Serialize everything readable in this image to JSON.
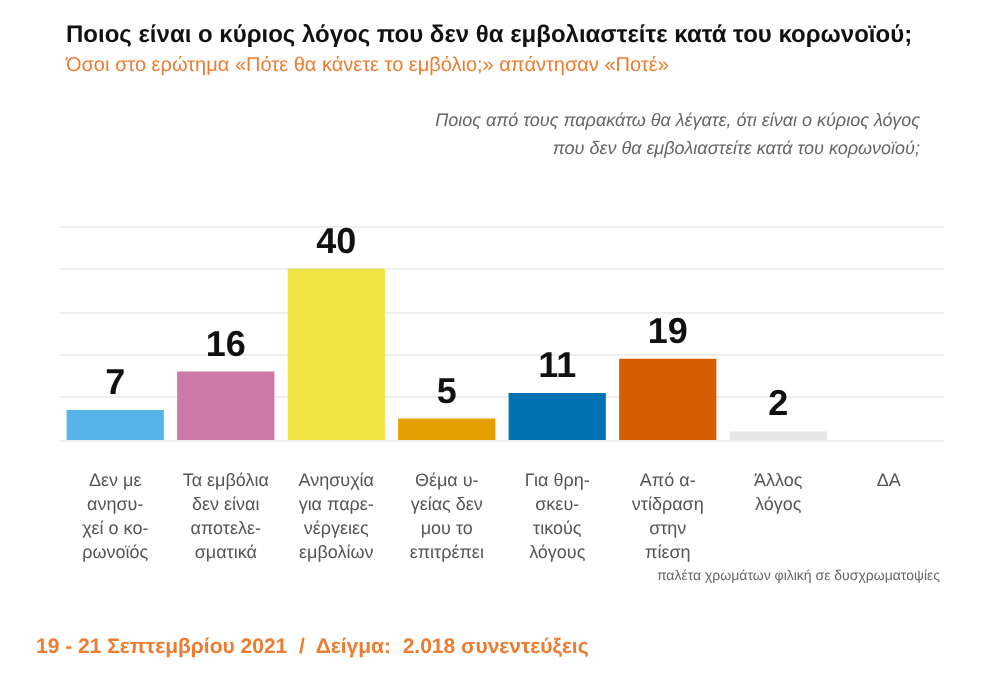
{
  "chart_data": {
    "type": "bar",
    "title": "Ποιος είναι ο κύριος λόγος που δεν θα εμβολιαστείτε κατά του κορωνοϊού;",
    "subtitle": "Όσοι στο ερώτημα «Πότε θα κάνετε το εμβόλιο;» απάντησαν «Ποτέ»",
    "categories": [
      "Δεν με\nανησυ-\nχεί ο κο-\nρωνοϊός",
      "Τα εμβόλια\nδεν είναι\nαποτελε-\nσματικά",
      "Ανησυχία\nγια παρε-\nνέργειες\nεμβολίων",
      "Θέμα υ-\nγείας δεν\nμου το\nεπιτρέπει",
      "Για θρη-\nσκευ-\nτικούς\nλόγους",
      "Από α-\nντίδραση\nστην\nπίεση",
      "Άλλος\nλόγος",
      "ΔΑ"
    ],
    "values": [
      7,
      16,
      40,
      5,
      11,
      19,
      2,
      null
    ],
    "colors": [
      "#56b4e9",
      "#cc79a7",
      "#f0e442",
      "#e69f00",
      "#0072b2",
      "#d55e00",
      "#e6e6e6",
      "#cccccc"
    ],
    "ylim": [
      0,
      50
    ],
    "yticks": [
      {
        "value": 0,
        "label": null
      },
      {
        "value": 10,
        "label": null
      },
      {
        "value": 20,
        "label": null
      },
      {
        "value": 30,
        "label": null
      },
      {
        "value": 40,
        "label": null
      },
      {
        "value": 50,
        "label": null
      }
    ],
    "tick_labels": "x",
    "grid": "y",
    "data_labels": true,
    "annotations": [
      "Ποιος από τους παρακάτω θα λέγατε, ότι είναι ο κύριος λόγος\nπου δεν θα εμβολιαστείτε κατά του κορωνοϊού;",
      "παλέτα χρωμάτων φιλική σε δυσχρωματοψίες",
      "19 - 21 Σεπτεμβρίου 2021  /  Δείγμα:  2.018 συνεντεύξεις"
    ]
  }
}
